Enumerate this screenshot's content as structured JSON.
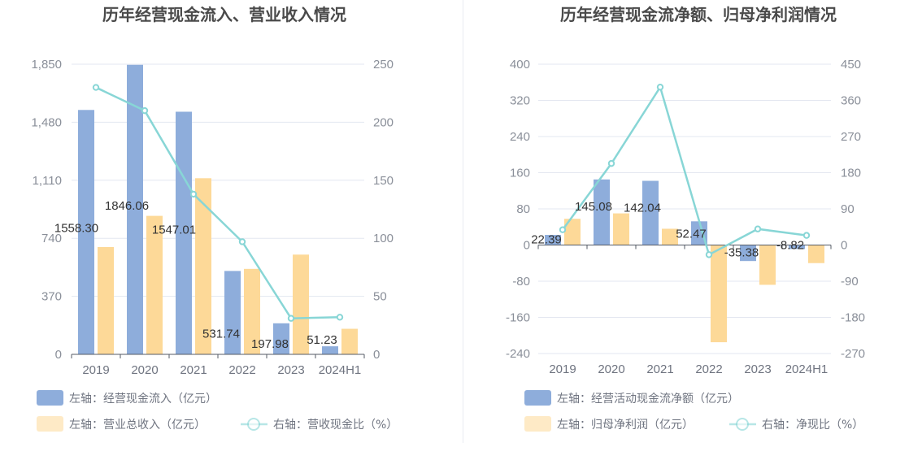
{
  "chart_data": [
    {
      "type": "bar",
      "title": "历年经营现金流入、营业收入情况",
      "categories": [
        "2019",
        "2020",
        "2021",
        "2022",
        "2023",
        "2024H1"
      ],
      "left_axis": {
        "ticks": [
          "0",
          "370",
          "740",
          "1,110",
          "1,480",
          "1,850"
        ],
        "range": [
          0,
          1850
        ]
      },
      "right_axis": {
        "ticks": [
          "0",
          "50",
          "100",
          "150",
          "200",
          "250"
        ],
        "range": [
          0,
          250
        ]
      },
      "series": [
        {
          "name": "左轴：经营现金流入（亿元）",
          "axis": "left",
          "kind": "bar",
          "color": "#8eaddb",
          "values": [
            1558.3,
            1846.06,
            1547.01,
            531.74,
            197.98,
            51.23
          ],
          "labels": [
            "1558.30",
            "1846.06",
            "1547.01",
            "531.74",
            "197.98",
            "51.23"
          ]
        },
        {
          "name": "左轴：营业总收入（亿元）",
          "axis": "left",
          "kind": "bar",
          "color": "#fdd998",
          "values": [
            684,
            883,
            1123,
            545,
            636,
            163
          ]
        },
        {
          "name": "右轴：营收现金比（%）",
          "axis": "right",
          "kind": "line",
          "color": "#88d6d6",
          "values": [
            230,
            210,
            138,
            97,
            31,
            32
          ]
        }
      ]
    },
    {
      "type": "bar",
      "title": "历年经营现金流净额、归母净利润情况",
      "categories": [
        "2019",
        "2020",
        "2021",
        "2022",
        "2023",
        "2024H1"
      ],
      "left_axis": {
        "ticks": [
          "-240",
          "-160",
          "-80",
          "0",
          "80",
          "160",
          "240",
          "320",
          "400"
        ],
        "range": [
          -240,
          400
        ]
      },
      "right_axis": {
        "ticks": [
          "-270",
          "-180",
          "-90",
          "0",
          "90",
          "180",
          "270",
          "360",
          "450"
        ],
        "range": [
          -270,
          450
        ]
      },
      "series": [
        {
          "name": "左轴：经营活动现金流净额（亿元）",
          "axis": "left",
          "kind": "bar",
          "color": "#8eaddb",
          "values": [
            22.39,
            145.08,
            142.04,
            52.47,
            -35.38,
            -8.82
          ],
          "labels": [
            "22.39",
            "145.08",
            "142.04",
            "52.47",
            "-35.38",
            "-8.82"
          ]
        },
        {
          "name": "左轴：归母净利润（亿元）",
          "axis": "left",
          "kind": "bar",
          "color": "#fdd998",
          "values": [
            58,
            70,
            36,
            -215,
            -88,
            -40
          ]
        },
        {
          "name": "右轴：净现比（%）",
          "axis": "right",
          "kind": "line",
          "color": "#88d6d6",
          "values": [
            38,
            203,
            393,
            -24,
            40,
            24
          ]
        }
      ]
    }
  ]
}
